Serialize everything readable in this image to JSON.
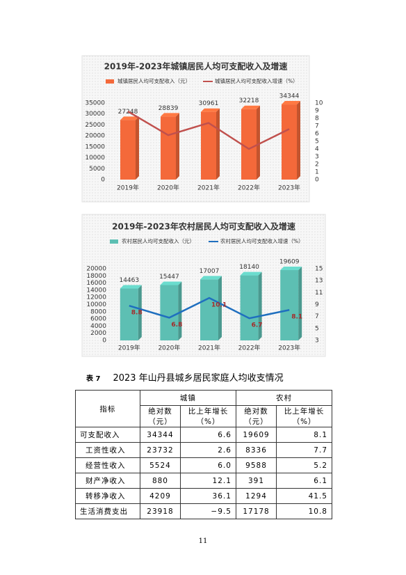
{
  "chart_data": [
    {
      "type": "bar",
      "title": "2019年-2023年城镇居民人均可支配收入及增速",
      "categories": [
        "2019年",
        "2020年",
        "2021年",
        "2022年",
        "2023年"
      ],
      "series": [
        {
          "name": "城镇居民人均可支配收入（元）",
          "type": "bar",
          "color": "#f4693a",
          "values": [
            27248,
            28839,
            30961,
            32218,
            34344
          ],
          "data_labels": true
        },
        {
          "name": "城镇居民人均可支配收入增速（%）",
          "type": "line",
          "axis": "y2",
          "color": "#c0504d",
          "values": [
            8.9,
            5.8,
            7.4,
            4.0,
            6.6
          ],
          "data_labels": false
        }
      ],
      "ylim": [
        0,
        35000
      ],
      "yticks": [
        0,
        5000,
        10000,
        15000,
        20000,
        25000,
        30000,
        35000
      ],
      "y2lim": [
        0,
        10
      ],
      "y2ticks": [
        0,
        1,
        2,
        3,
        4,
        5,
        6,
        7,
        8,
        9,
        10
      ]
    },
    {
      "type": "bar",
      "title": "2019年-2023年农村居民人均可支配收入及增速",
      "categories": [
        "2019年",
        "2020年",
        "2021年",
        "2022年",
        "2023年"
      ],
      "series": [
        {
          "name": "农村居民人均可支配收入（元）",
          "type": "bar",
          "color": "#5dbfb3",
          "values": [
            14463,
            15447,
            17007,
            18140,
            19609
          ],
          "data_labels": true
        },
        {
          "name": "农村居民人均可支配收入增速（%）",
          "type": "line",
          "axis": "y2",
          "color": "#1f6fbf",
          "values": [
            8.8,
            6.8,
            10.1,
            6.7,
            8.1
          ],
          "data_labels": true
        }
      ],
      "ylim": [
        0,
        20000
      ],
      "yticks": [
        0,
        2000,
        4000,
        6000,
        8000,
        10000,
        12000,
        14000,
        16000,
        18000,
        20000
      ],
      "y2lim": [
        3,
        15
      ],
      "y2ticks": [
        3,
        5,
        7,
        9,
        11,
        13,
        15
      ]
    }
  ],
  "caption": {
    "number": "表 7",
    "title": "2023 年山丹县城乡居民家庭人均收支情况"
  },
  "table": {
    "header": {
      "indicator": "指标",
      "groups": [
        "城镇",
        "农村"
      ],
      "subheads": [
        [
          "绝对数",
          "（元）"
        ],
        [
          "比上年增长",
          "（%）"
        ]
      ]
    },
    "rows": [
      [
        "可支配收入",
        "34344",
        "6.6",
        "19609",
        "8.1"
      ],
      [
        "工资性收入",
        "23732",
        "2.6",
        "8336",
        "7.7"
      ],
      [
        "经营性收入",
        "5524",
        "6.0",
        "9588",
        "5.2"
      ],
      [
        "财产净收入",
        "880",
        "12.1",
        "391",
        "6.1"
      ],
      [
        "转移净收入",
        "4209",
        "36.1",
        "1294",
        "41.5"
      ],
      [
        "生活消费支出",
        "23918",
        "−9.5",
        "17178",
        "10.8"
      ]
    ]
  },
  "page_number": "11"
}
